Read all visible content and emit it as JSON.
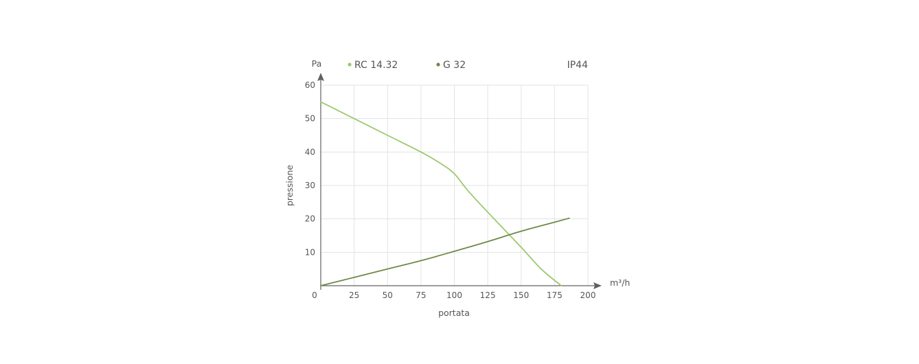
{
  "chart_data": {
    "type": "line",
    "xlabel": "portata",
    "x_unit": "m³/h",
    "ylabel": "pressione",
    "y_unit": "Pa",
    "xlim": [
      0,
      200
    ],
    "ylim": [
      0,
      60
    ],
    "x_ticks": [
      "0",
      "25",
      "50",
      "75",
      "100",
      "125",
      "150",
      "175",
      "200"
    ],
    "y_ticks": [
      "10",
      "20",
      "30",
      "40",
      "50",
      "60"
    ],
    "grid": true,
    "annotation": "IP44",
    "series": [
      {
        "name": "RC 14.32",
        "color": "#9dc86f",
        "points": [
          [
            0,
            55
          ],
          [
            25,
            50
          ],
          [
            50,
            45
          ],
          [
            75,
            40
          ],
          [
            90,
            36.5
          ],
          [
            100,
            33.5
          ],
          [
            110,
            28.5
          ],
          [
            125,
            22
          ],
          [
            150,
            11.5
          ],
          [
            165,
            5
          ],
          [
            180,
            0
          ]
        ]
      },
      {
        "name": "G 32",
        "color": "#6d8a45",
        "points": [
          [
            0,
            0
          ],
          [
            25,
            2.5
          ],
          [
            50,
            5
          ],
          [
            75,
            7.5
          ],
          [
            100,
            10.3
          ],
          [
            125,
            13.2
          ],
          [
            150,
            16.3
          ],
          [
            175,
            19
          ],
          [
            186,
            20.2
          ]
        ]
      }
    ]
  }
}
